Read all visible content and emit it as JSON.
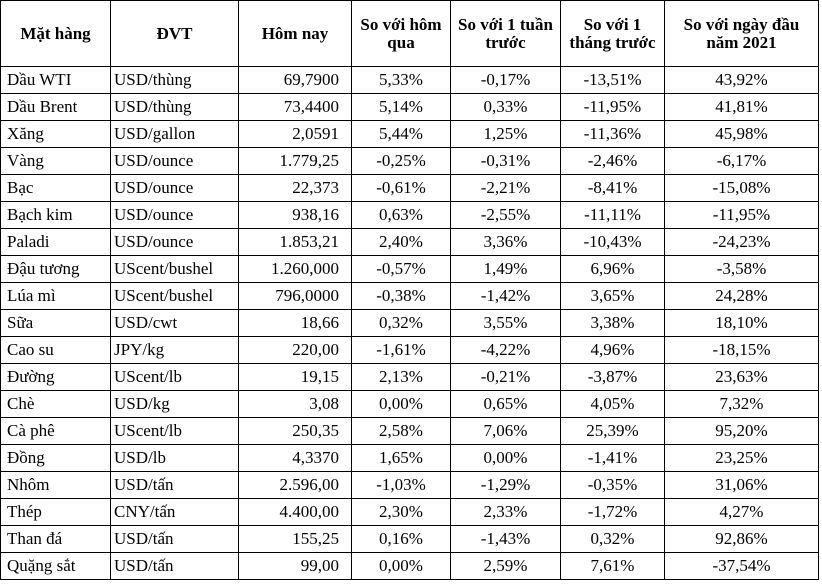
{
  "table": {
    "headers": {
      "item": "Mặt hàng",
      "unit": "ĐVT",
      "today": "Hôm nay",
      "vs_yesterday": "So với hôm qua",
      "vs_week": "So với 1 tuần trước",
      "vs_month": "So với 1 tháng trước",
      "vs_year_start": "So với ngày đầu năm 2021"
    },
    "rows": [
      {
        "item": "Dầu WTI",
        "unit": "USD/thùng",
        "today": "69,7900",
        "vs_yesterday": "5,33%",
        "vs_week": "-0,17%",
        "vs_month": "-13,51%",
        "vs_year_start": "43,92%"
      },
      {
        "item": "Dầu Brent",
        "unit": "USD/thùng",
        "today": "73,4400",
        "vs_yesterday": "5,14%",
        "vs_week": "0,33%",
        "vs_month": "-11,95%",
        "vs_year_start": "41,81%"
      },
      {
        "item": "Xăng",
        "unit": "USD/gallon",
        "today": "2,0591",
        "vs_yesterday": "5,44%",
        "vs_week": "1,25%",
        "vs_month": "-11,36%",
        "vs_year_start": "45,98%"
      },
      {
        "item": "Vàng",
        "unit": "USD/ounce",
        "today": "1.779,25",
        "vs_yesterday": "-0,25%",
        "vs_week": "-0,31%",
        "vs_month": "-2,46%",
        "vs_year_start": "-6,17%"
      },
      {
        "item": "Bạc",
        "unit": "USD/ounce",
        "today": "22,373",
        "vs_yesterday": "-0,61%",
        "vs_week": "-2,21%",
        "vs_month": "-8,41%",
        "vs_year_start": "-15,08%"
      },
      {
        "item": "Bạch kim",
        "unit": "USD/ounce",
        "today": "938,16",
        "vs_yesterday": "0,63%",
        "vs_week": "-2,55%",
        "vs_month": "-11,11%",
        "vs_year_start": "-11,95%"
      },
      {
        "item": "Paladi",
        "unit": "USD/ounce",
        "today": "1.853,21",
        "vs_yesterday": "2,40%",
        "vs_week": "3,36%",
        "vs_month": "-10,43%",
        "vs_year_start": "-24,23%"
      },
      {
        "item": "Đậu tương",
        "unit": "UScent/bushel",
        "today": "1.260,000",
        "vs_yesterday": "-0,57%",
        "vs_week": "1,49%",
        "vs_month": "6,96%",
        "vs_year_start": "-3,58%"
      },
      {
        "item": "Lúa mì",
        "unit": "UScent/bushel",
        "today": "796,0000",
        "vs_yesterday": "-0,38%",
        "vs_week": "-1,42%",
        "vs_month": "3,65%",
        "vs_year_start": "24,28%"
      },
      {
        "item": "Sữa",
        "unit": "USD/cwt",
        "today": "18,66",
        "vs_yesterday": "0,32%",
        "vs_week": "3,55%",
        "vs_month": "3,38%",
        "vs_year_start": "18,10%"
      },
      {
        "item": "Cao su",
        "unit": "JPY/kg",
        "today": "220,00",
        "vs_yesterday": "-1,61%",
        "vs_week": "-4,22%",
        "vs_month": "4,96%",
        "vs_year_start": "-18,15%"
      },
      {
        "item": "Đường",
        "unit": "UScent/lb",
        "today": "19,15",
        "vs_yesterday": "2,13%",
        "vs_week": "-0,21%",
        "vs_month": "-3,87%",
        "vs_year_start": "23,63%"
      },
      {
        "item": "Chè",
        "unit": "USD/kg",
        "today": "3,08",
        "vs_yesterday": "0,00%",
        "vs_week": "0,65%",
        "vs_month": "4,05%",
        "vs_year_start": "7,32%"
      },
      {
        "item": "Cà phê",
        "unit": "UScent/lb",
        "today": "250,35",
        "vs_yesterday": "2,58%",
        "vs_week": "7,06%",
        "vs_month": "25,39%",
        "vs_year_start": "95,20%"
      },
      {
        "item": "Đồng",
        "unit": "USD/lb",
        "today": "4,3370",
        "vs_yesterday": "1,65%",
        "vs_week": "0,00%",
        "vs_month": "-1,41%",
        "vs_year_start": "23,25%"
      },
      {
        "item": "Nhôm",
        "unit": "USD/tấn",
        "today": "2.596,00",
        "vs_yesterday": "-1,03%",
        "vs_week": "-1,29%",
        "vs_month": "-0,35%",
        "vs_year_start": "31,06%"
      },
      {
        "item": "Thép",
        "unit": "CNY/tấn",
        "today": "4.400,00",
        "vs_yesterday": "2,30%",
        "vs_week": "2,33%",
        "vs_month": "-1,72%",
        "vs_year_start": "4,27%"
      },
      {
        "item": "Than đá",
        "unit": "USD/tấn",
        "today": "155,25",
        "vs_yesterday": "0,16%",
        "vs_week": "-1,43%",
        "vs_month": "0,32%",
        "vs_year_start": "92,86%"
      },
      {
        "item": "Quặng sắt",
        "unit": "USD/tấn",
        "today": "99,00",
        "vs_yesterday": "0,00%",
        "vs_week": "2,59%",
        "vs_month": "7,61%",
        "vs_year_start": "-37,54%"
      }
    ]
  }
}
